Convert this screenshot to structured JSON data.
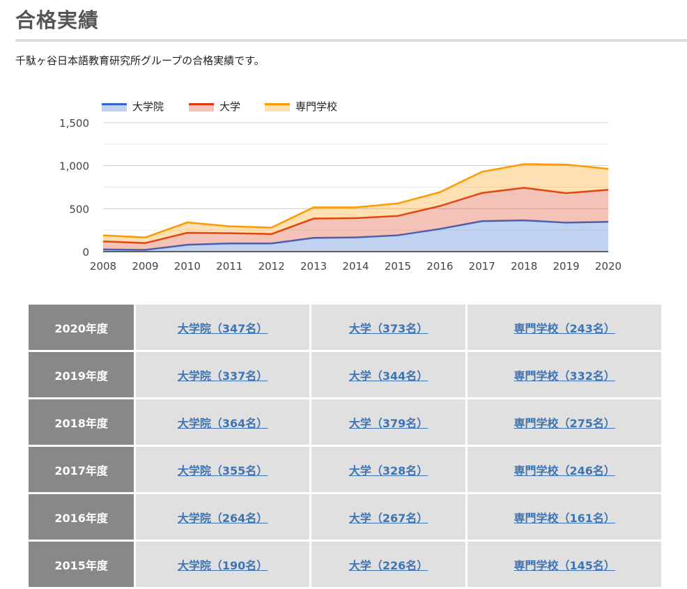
{
  "page": {
    "title": "合格実績",
    "intro": "千駄ヶ谷日本語教育研究所グループの合格実績です。"
  },
  "colors": {
    "graduate": "#3366cc",
    "university": "#dc3912",
    "vocational": "#ff9900",
    "year_cell_bg": "#888888",
    "cell_bg": "#e0e0e0",
    "link": "#3f74b3"
  },
  "chart_data": {
    "type": "area",
    "stacked": true,
    "title": "",
    "xlabel": "",
    "ylabel": "",
    "x": [
      2008,
      2009,
      2010,
      2011,
      2012,
      2013,
      2014,
      2015,
      2016,
      2017,
      2018,
      2019,
      2020
    ],
    "x_ticks": [
      "2008",
      "2009",
      "2010",
      "2011",
      "2012",
      "2013",
      "2014",
      "2015",
      "2016",
      "2017",
      "2018",
      "2019",
      "2020"
    ],
    "y_ticks": [
      "0",
      "500",
      "1,000",
      "1,500"
    ],
    "ylim": [
      0,
      1500
    ],
    "grid": true,
    "legend_position": "top-left",
    "series": [
      {
        "name": "大学院",
        "values": [
          25,
          20,
          80,
          95,
          95,
          160,
          165,
          190,
          264,
          355,
          364,
          337,
          347
        ]
      },
      {
        "name": "大学",
        "values": [
          95,
          80,
          140,
          120,
          110,
          225,
          225,
          226,
          267,
          328,
          379,
          344,
          373
        ]
      },
      {
        "name": "専門学校",
        "values": [
          70,
          65,
          120,
          80,
          75,
          130,
          125,
          145,
          161,
          246,
          275,
          332,
          243
        ]
      }
    ]
  },
  "table": {
    "rows": [
      {
        "year": "2020年度",
        "grad": "大学院（347名）",
        "univ": "大学（373名）",
        "voc": "専門学校（243名）"
      },
      {
        "year": "2019年度",
        "grad": "大学院（337名）",
        "univ": "大学（344名）",
        "voc": "専門学校（332名）"
      },
      {
        "year": "2018年度",
        "grad": "大学院（364名）",
        "univ": "大学（379名）",
        "voc": "専門学校（275名）"
      },
      {
        "year": "2017年度",
        "grad": "大学院（355名）",
        "univ": "大学（328名）",
        "voc": "専門学校（246名）"
      },
      {
        "year": "2016年度",
        "grad": "大学院（264名）",
        "univ": "大学（267名）",
        "voc": "専門学校（161名）"
      },
      {
        "year": "2015年度",
        "grad": "大学院（190名）",
        "univ": "大学（226名）",
        "voc": "専門学校（145名）"
      }
    ]
  }
}
